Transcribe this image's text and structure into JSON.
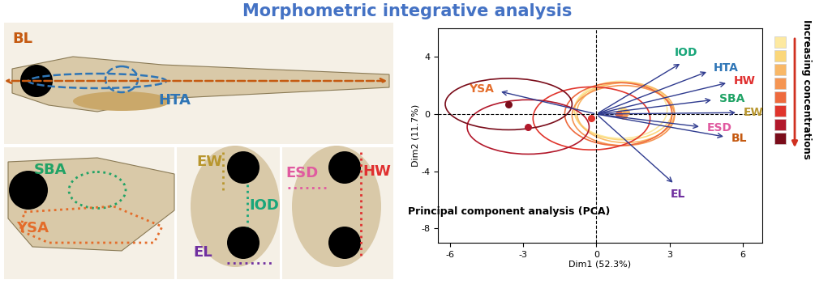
{
  "title": "Morphometric integrative analysis",
  "measurements": [
    {
      "label": "BL",
      "color": "#c55a11"
    },
    {
      "label": "HTA",
      "color": "#2e75b6"
    },
    {
      "label": "SBA",
      "color": "#21a366"
    },
    {
      "label": "YSA",
      "color": "#e46c2a"
    },
    {
      "label": "EW",
      "color": "#b8962e"
    },
    {
      "label": "IOD",
      "color": "#19a67a"
    },
    {
      "label": "EL",
      "color": "#7030a0"
    },
    {
      "label": "ESD",
      "color": "#e05aa0"
    },
    {
      "label": "HW",
      "color": "#e03030"
    }
  ],
  "chart_data": {
    "type": "scatter",
    "title": "Principal component analysis (PCA)",
    "xlabel": "Dim1 (52.3%)",
    "ylabel": "Dim2 (11.7%)",
    "xlim": [
      -6.5,
      6.8
    ],
    "ylim": [
      -9,
      6
    ],
    "xticks": [
      -6,
      -3,
      0,
      3,
      6
    ],
    "yticks": [
      -8,
      -4,
      0,
      4
    ],
    "loadings": {
      "labels": [
        "BL",
        "HTA",
        "SBA",
        "YSA",
        "EW",
        "IOD",
        "EL",
        "ESD",
        "HW"
      ],
      "x": [
        5.3,
        4.6,
        4.8,
        -4.0,
        5.8,
        3.5,
        3.2,
        4.3,
        5.4
      ],
      "y": [
        -1.6,
        3.0,
        1.0,
        1.6,
        0.1,
        3.6,
        -4.9,
        -0.9,
        2.2
      ]
    },
    "groups": {
      "x": [
        1.0,
        1.1,
        1.2,
        1.1,
        0.9,
        -0.2,
        -2.8,
        -3.6
      ],
      "y": [
        0.3,
        0.2,
        0.1,
        -0.1,
        0.0,
        -0.3,
        -0.9,
        0.7
      ],
      "ellipse_rx": [
        1.9,
        2.0,
        2.0,
        2.1,
        2.2,
        2.4,
        2.5,
        2.6
      ],
      "ellipse_ry": [
        2.0,
        2.0,
        2.1,
        2.1,
        2.2,
        2.2,
        1.9,
        1.8
      ],
      "colors": [
        "#fde9a0",
        "#fbd77a",
        "#f9b867",
        "#f59552",
        "#ee6a3d",
        "#e0342c",
        "#b2182b",
        "#7a0c1a"
      ]
    },
    "legend_title": "Increasing concentrations"
  }
}
